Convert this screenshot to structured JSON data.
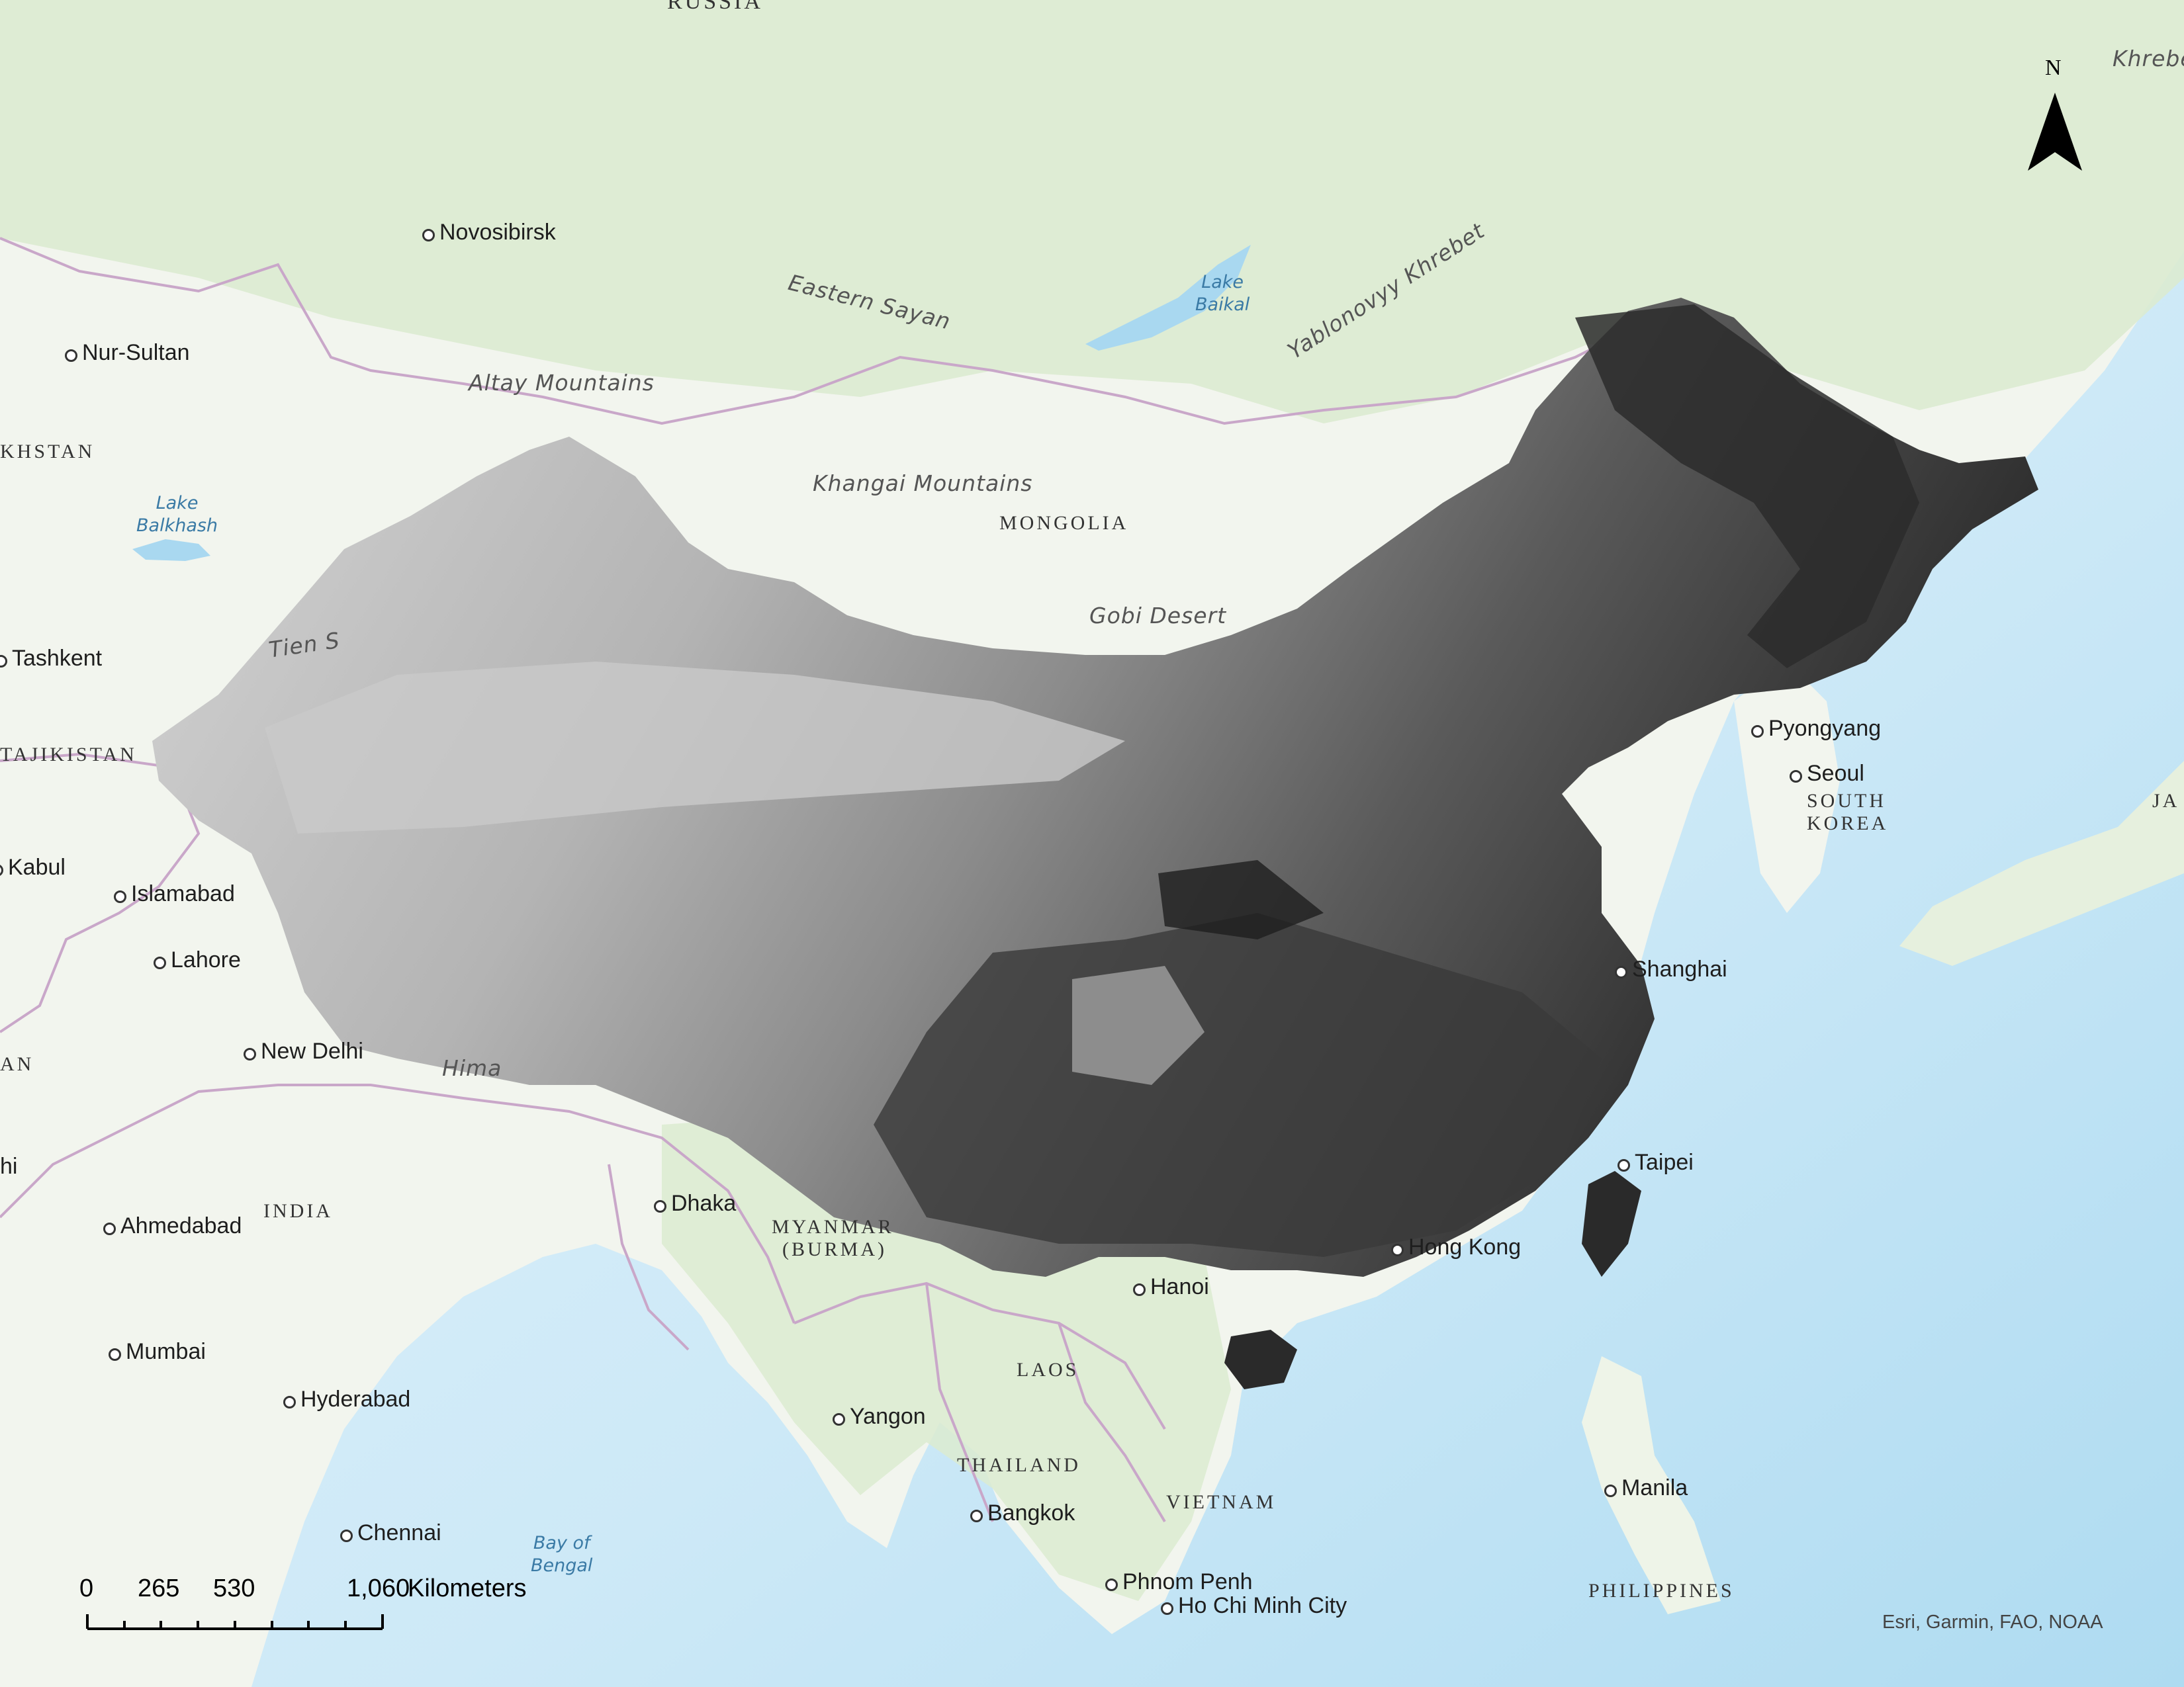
{
  "map": {
    "countries": [
      "RUSSIA",
      "MONGOLIA",
      "KHSTAN",
      "TAJIKISTAN",
      "AN",
      "INDIA",
      "MYANMAR",
      "(BURMA)",
      "LAOS",
      "THAILAND",
      "VIETNAM",
      "SOUTH",
      "KOREA",
      "JA",
      "PHILIPPINES"
    ],
    "cities": [
      "Novosibirsk",
      "Nur-Sultan",
      "Tashkent",
      "Kabul",
      "Islamabad",
      "Lahore",
      "New Delhi",
      "hi",
      "Ahmedabad",
      "Mumbai",
      "Hyderabad",
      "Chennai",
      "Dhaka",
      "Yangon",
      "Bangkok",
      "Phnom Penh",
      "Ho Chi Minh City",
      "Hanoi",
      "Hong Kong",
      "Shanghai",
      "Taipei",
      "Pyongyang",
      "Seoul",
      "Manila"
    ],
    "physical": [
      "Eastern Sayan",
      "Yablonovyy Khrebet",
      "Khrebe",
      "Altay Mountains",
      "Khangai Mountains",
      "Gobi Desert",
      "Tien S",
      "Hima"
    ],
    "water": [
      "Lake\nBaikal",
      "Lake\nBalkhash",
      "Bay of\nBengal"
    ]
  },
  "north_arrow": {
    "label": "N"
  },
  "scale_bar": {
    "ticks": [
      "0",
      "265",
      "530",
      "1,060"
    ],
    "unit": "Kilometers"
  },
  "attribution": "Esri, Garmin, FAO, NOAA",
  "colors": {
    "ocean": "#d6eef9",
    "land": "#f2f5ee",
    "vegetation": "#dcebd0",
    "border": "#c9a7c9",
    "raster_light": "#d0d0d0",
    "raster_dark": "#1e1e1e"
  }
}
